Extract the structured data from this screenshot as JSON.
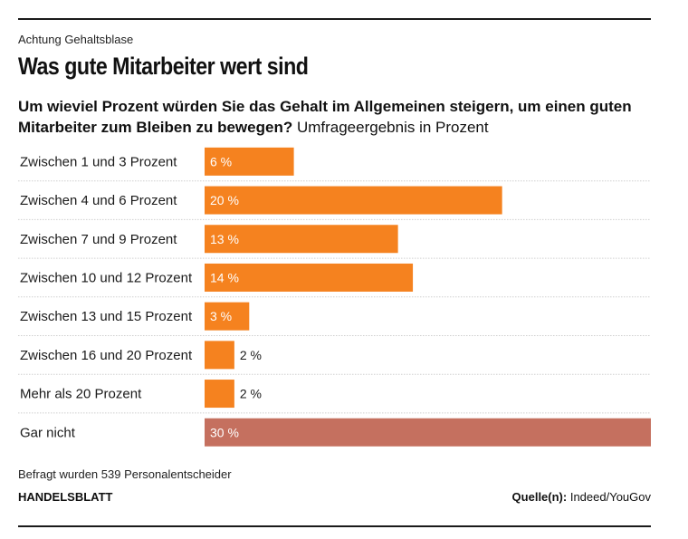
{
  "header": {
    "kicker": "Achtung Gehaltsblase",
    "title": "Was gute Mitarbeiter wert sind",
    "question": "Um wieviel Prozent würden Sie das Gehalt im Allgemeinen steigern, um einen guten Mitarbeiter zum Bleiben zu bewegen?",
    "unit": "Umfrageergebnis in Prozent"
  },
  "chart_data": {
    "type": "bar",
    "orientation": "horizontal",
    "categories": [
      "Zwischen 1 und 3 Prozent",
      "Zwischen 4 und 6 Prozent",
      "Zwischen 7 und 9 Prozent",
      "Zwischen 10 und 12 Prozent",
      "Zwischen 13 und 15 Prozent",
      "Zwischen 16 und 20 Prozent",
      "Mehr als 20 Prozent",
      "Gar nicht"
    ],
    "values": [
      6,
      20,
      13,
      14,
      3,
      2,
      2,
      30
    ],
    "value_labels": [
      "6 %",
      "20 %",
      "13 %",
      "14 %",
      "3 %",
      "2 %",
      "2 %",
      "30 %"
    ],
    "xlim": [
      0,
      30
    ],
    "grid": false,
    "colors": {
      "default": "#f5821f",
      "highlight": "#c5705f",
      "highlight_category": "Gar nicht",
      "label_inside": "#ffffff",
      "label_outside": "#1a1a1a",
      "separator": "#cfcfcf"
    }
  },
  "footer": {
    "note": "Befragt wurden 539 Personalentscheider",
    "brand": "HANDELSBLATT",
    "source_label": "Quelle(n):",
    "source_value": "Indeed/YouGov"
  }
}
